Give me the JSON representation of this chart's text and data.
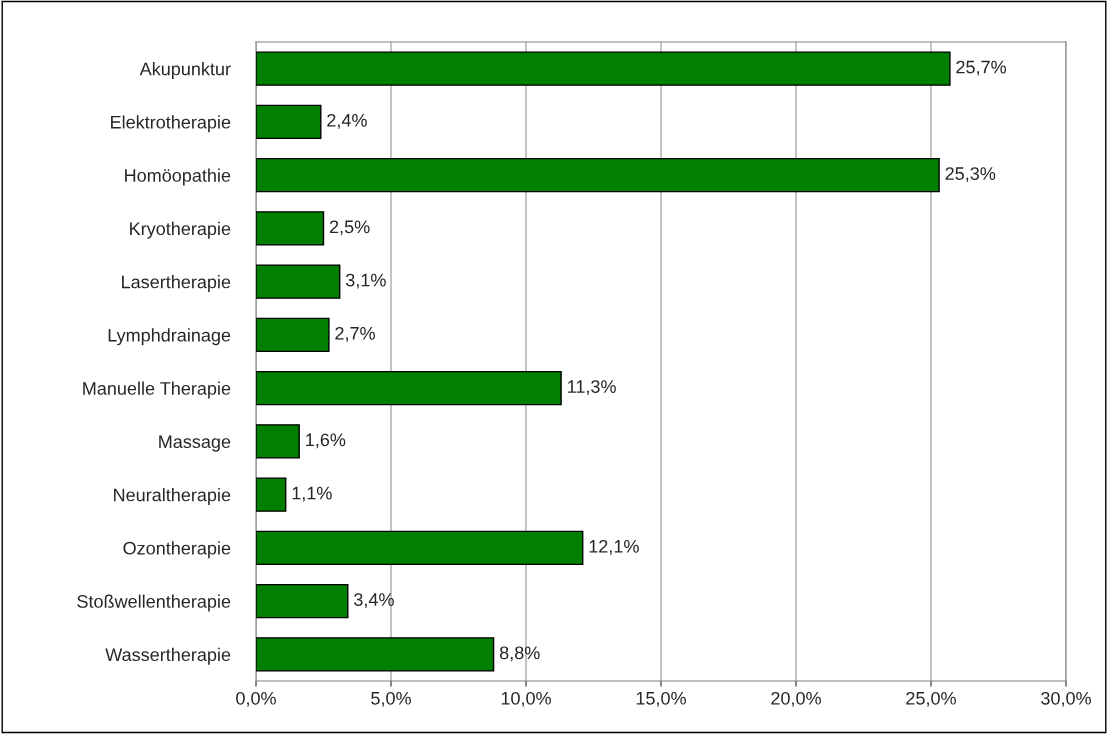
{
  "chart_data": {
    "type": "bar",
    "orientation": "horizontal",
    "categories": [
      "Akupunktur",
      "Elektrotherapie",
      "Homöopathie",
      "Kryotherapie",
      "Lasertherapie",
      "Lymphdrainage",
      "Manuelle Therapie",
      "Massage",
      "Neuraltherapie",
      "Ozontherapie",
      "Stoßwellentherapie",
      "Wassertherapie"
    ],
    "values": [
      25.7,
      2.4,
      25.3,
      2.5,
      3.1,
      2.7,
      11.3,
      1.6,
      1.1,
      12.1,
      3.4,
      8.8
    ],
    "value_labels": [
      "25,7%",
      "2,4%",
      "25,3%",
      "2,5%",
      "3,1%",
      "2,7%",
      "11,3%",
      "1,6%",
      "1,1%",
      "12,1%",
      "3,4%",
      "8,8%"
    ],
    "color": "#007f00",
    "xlim": [
      0,
      30
    ],
    "xticks": [
      {
        "value": 0,
        "label": "0,0%"
      },
      {
        "value": 5,
        "label": "5,0%"
      },
      {
        "value": 10,
        "label": "10,0%"
      },
      {
        "value": 15,
        "label": "15,0%"
      },
      {
        "value": 20,
        "label": "20,0%"
      },
      {
        "value": 25,
        "label": "25,0%"
      },
      {
        "value": 30,
        "label": "30,0%"
      }
    ],
    "grid": "x",
    "legend": false
  }
}
